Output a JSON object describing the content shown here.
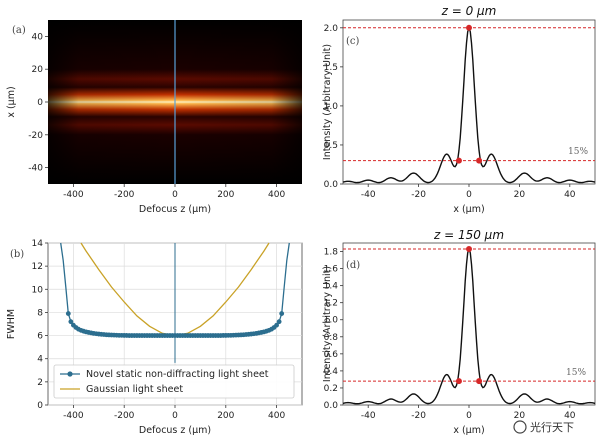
{
  "watermark": "光行天下",
  "panels": {
    "a": "(a)",
    "b": "(b)",
    "c": "(c)",
    "d": "(d)"
  },
  "chart_data": [
    {
      "id": "a",
      "type": "heatmap",
      "xlabel": "Defocus z (μm)",
      "ylabel": "x (μm)",
      "xlim": [
        -500,
        500
      ],
      "ylim": [
        -50,
        50
      ],
      "xticks": [
        -400,
        -200,
        0,
        200,
        400
      ],
      "yticks": [
        -40,
        -20,
        0,
        20,
        40
      ],
      "colormap": "hot",
      "beam_center_x": 0,
      "marker_line_z": 0
    },
    {
      "id": "b",
      "type": "line",
      "xlabel": "Defocus z (μm)",
      "ylabel": "FWHM",
      "xlim": [
        -500,
        500
      ],
      "ylim": [
        0,
        14
      ],
      "xticks": [
        -400,
        -200,
        0,
        200,
        400
      ],
      "yticks": [
        0,
        2,
        4,
        6,
        8,
        10,
        12,
        14
      ],
      "grid": true,
      "legend": "bottom-left",
      "series": [
        {
          "name": "Novel static non-diffracting light sheet",
          "color": "#2c6e8f",
          "marker": "circle",
          "x": [
            -450,
            -440,
            -430,
            -420,
            -410,
            -400,
            -390,
            -380,
            -370,
            -360,
            -350,
            -340,
            -330,
            -320,
            -310,
            -300,
            -290,
            -280,
            -270,
            -260,
            -250,
            -240,
            -230,
            -220,
            -210,
            -200,
            -190,
            -180,
            -170,
            -160,
            -150,
            -140,
            -130,
            -120,
            -110,
            -100,
            -90,
            -80,
            -70,
            -60,
            -50,
            -40,
            -30,
            -20,
            -10,
            0,
            10,
            20,
            30,
            40,
            50,
            60,
            70,
            80,
            90,
            100,
            110,
            120,
            130,
            140,
            150,
            160,
            170,
            180,
            190,
            200,
            210,
            220,
            230,
            240,
            250,
            260,
            270,
            280,
            290,
            300,
            310,
            320,
            330,
            340,
            350,
            360,
            370,
            380,
            390,
            400,
            410,
            420,
            430,
            440,
            450
          ],
          "y": [
            14,
            12.5,
            10.2,
            7.9,
            7.2,
            6.9,
            6.7,
            6.55,
            6.45,
            6.38,
            6.32,
            6.27,
            6.23,
            6.19,
            6.16,
            6.13,
            6.11,
            6.09,
            6.07,
            6.06,
            6.05,
            6.04,
            6.03,
            6.02,
            6.02,
            6.01,
            6.01,
            6.0,
            6.0,
            6.0,
            6.0,
            6.0,
            6.0,
            6.0,
            6.0,
            6.0,
            6.0,
            6.0,
            6.0,
            6.0,
            6.0,
            6.0,
            6.0,
            6.0,
            6.0,
            6.0,
            6.0,
            6.0,
            6.0,
            6.0,
            6.0,
            6.0,
            6.0,
            6.0,
            6.0,
            6.0,
            6.0,
            6.0,
            6.0,
            6.0,
            6.0,
            6.0,
            6.0,
            6.0,
            6.01,
            6.01,
            6.02,
            6.02,
            6.03,
            6.04,
            6.05,
            6.06,
            6.07,
            6.09,
            6.11,
            6.13,
            6.16,
            6.19,
            6.23,
            6.27,
            6.32,
            6.38,
            6.45,
            6.55,
            6.7,
            6.9,
            7.2,
            7.9,
            10.2,
            12.5,
            14
          ]
        },
        {
          "name": "Gaussian light sheet",
          "color": "#c9a227",
          "x": [
            -370,
            -350,
            -300,
            -250,
            -200,
            -150,
            -100,
            -50,
            0,
            50,
            100,
            150,
            200,
            250,
            300,
            350,
            370
          ],
          "y": [
            14,
            13.3,
            11.7,
            10.2,
            8.9,
            7.7,
            6.8,
            6.2,
            6.0,
            6.2,
            6.8,
            7.7,
            8.9,
            10.2,
            11.7,
            13.3,
            14
          ]
        }
      ],
      "marker_line_z": 0
    },
    {
      "id": "c",
      "type": "line",
      "title": "z = 0 μm",
      "xlabel": "x (μm)",
      "ylabel": "Intensity (Arbitrary Unit)",
      "xlim": [
        -50,
        50
      ],
      "ylim": [
        0,
        2.1
      ],
      "xticks": [
        -40,
        -20,
        0,
        20,
        40
      ],
      "yticks": [
        0.0,
        0.5,
        1.0,
        1.5,
        2.0
      ],
      "peak": 2.0,
      "threshold": 0.3,
      "threshold_label": "15%",
      "sidelobes": [
        0.3,
        0.27,
        0.14,
        0.08,
        0.05
      ],
      "markers": [
        {
          "x": 0,
          "y": 2.0
        },
        {
          "x": -4,
          "y": 0.3
        },
        {
          "x": 4,
          "y": 0.3
        }
      ]
    },
    {
      "id": "d",
      "type": "line",
      "title": "z = 150 μm",
      "xlabel": "x (μm)",
      "ylabel": "Intensity (Arbitrary Unit)",
      "xlim": [
        -50,
        50
      ],
      "ylim": [
        0,
        1.9
      ],
      "xticks": [
        -40,
        -20,
        0,
        20,
        40
      ],
      "yticks": [
        0.0,
        0.2,
        0.4,
        0.6,
        0.8,
        1.0,
        1.2,
        1.4,
        1.6,
        1.8
      ],
      "peak": 1.83,
      "threshold": 0.28,
      "threshold_label": "15%",
      "sidelobes": [
        0.28,
        0.25,
        0.13,
        0.07,
        0.04
      ],
      "markers": [
        {
          "x": 0,
          "y": 1.83
        },
        {
          "x": -4,
          "y": 0.28
        },
        {
          "x": 4,
          "y": 0.28
        }
      ]
    }
  ]
}
